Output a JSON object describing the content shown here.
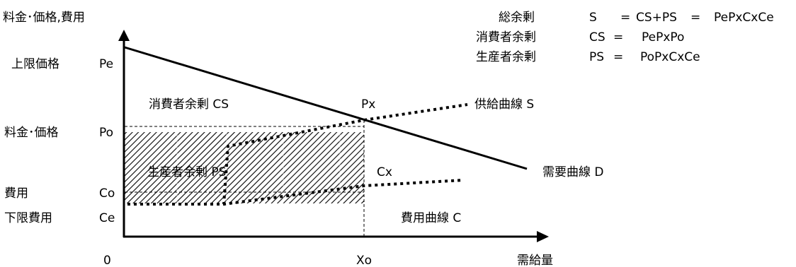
{
  "axes": {
    "y_label": "料金･価格,費用",
    "x_label": "需給量",
    "origin_label": "0",
    "x_tick_label": "Xo"
  },
  "y_levels": {
    "pe": {
      "label": "上限価格",
      "symbol": "Pe"
    },
    "po": {
      "label": "料金･価格",
      "symbol": "Po"
    },
    "co": {
      "label": "費用",
      "symbol": "Co"
    },
    "ce": {
      "label": "下限費用",
      "symbol": "Ce"
    }
  },
  "points": {
    "px": "Px",
    "cx": "Cx"
  },
  "curves": {
    "demand": "需要曲線 D",
    "supply": "供給曲線 S",
    "cost": "費用曲線 C"
  },
  "areas": {
    "consumer_surplus": "消費者余剰 CS",
    "producer_surplus": "生産者余剰 PS"
  },
  "legend": {
    "total": {
      "label": "総余剰",
      "lhs": "S",
      "eq1": "=",
      "formula1": "CS+PS",
      "eq2": "=",
      "formula2": "PePxCxCe"
    },
    "consumer": {
      "label": "消費者余剰",
      "lhs": "CS",
      "eq": "=",
      "formula": "PePxPo"
    },
    "producer": {
      "label": "生産者余剰",
      "lhs": "PS",
      "eq": "=",
      "formula": "PoPxCxCe"
    }
  }
}
